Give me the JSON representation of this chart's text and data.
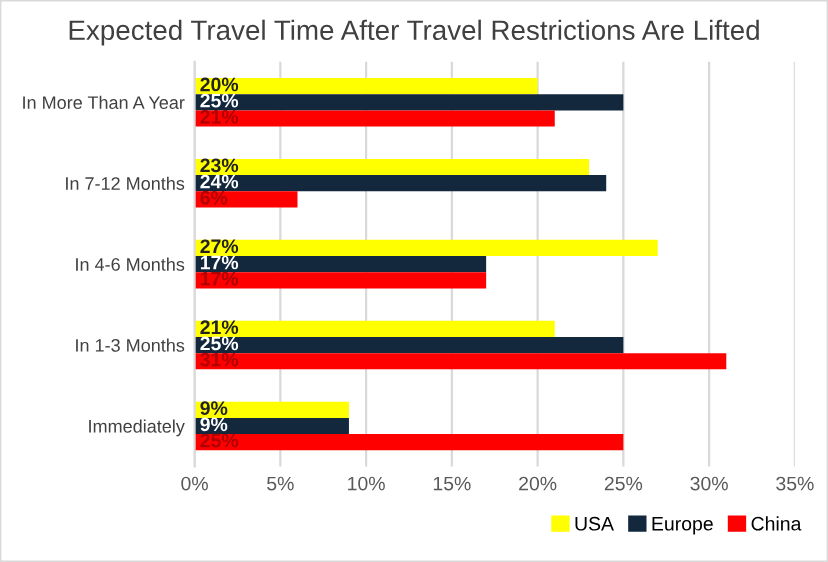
{
  "chart_data": {
    "type": "bar",
    "orientation": "horizontal",
    "title": "Expected Travel Time After Travel Restrictions Are Lifted",
    "categories": [
      "In More Than A Year",
      "In 7-12 Months",
      "In 4-6 Months",
      "In 1-3 Months",
      "Immediately"
    ],
    "series": [
      {
        "name": "USA",
        "color": "#ffff00",
        "values": [
          20,
          23,
          27,
          21,
          9
        ],
        "value_labels": [
          "20%",
          "23%",
          "27%",
          "21%",
          "9%"
        ]
      },
      {
        "name": "Europe",
        "color": "#13273d",
        "values": [
          25,
          24,
          17,
          25,
          9
        ],
        "value_labels": [
          "25%",
          "24%",
          "17%",
          "25%",
          "9%"
        ]
      },
      {
        "name": "China",
        "color": "#ff0000",
        "values": [
          21,
          6,
          17,
          31,
          25
        ],
        "value_labels": [
          "21%",
          "6%",
          "17%",
          "31%",
          "25%"
        ]
      }
    ],
    "xlim": [
      0,
      35
    ],
    "xticks": [
      {
        "value": 0,
        "label": "0%"
      },
      {
        "value": 5,
        "label": "5%"
      },
      {
        "value": 10,
        "label": "10%"
      },
      {
        "value": 15,
        "label": "15%"
      },
      {
        "value": 20,
        "label": "20%"
      },
      {
        "value": 25,
        "label": "25%"
      },
      {
        "value": 30,
        "label": "30%"
      },
      {
        "value": 35,
        "label": "35%"
      }
    ],
    "grid": "x",
    "legend": "bottom right"
  }
}
